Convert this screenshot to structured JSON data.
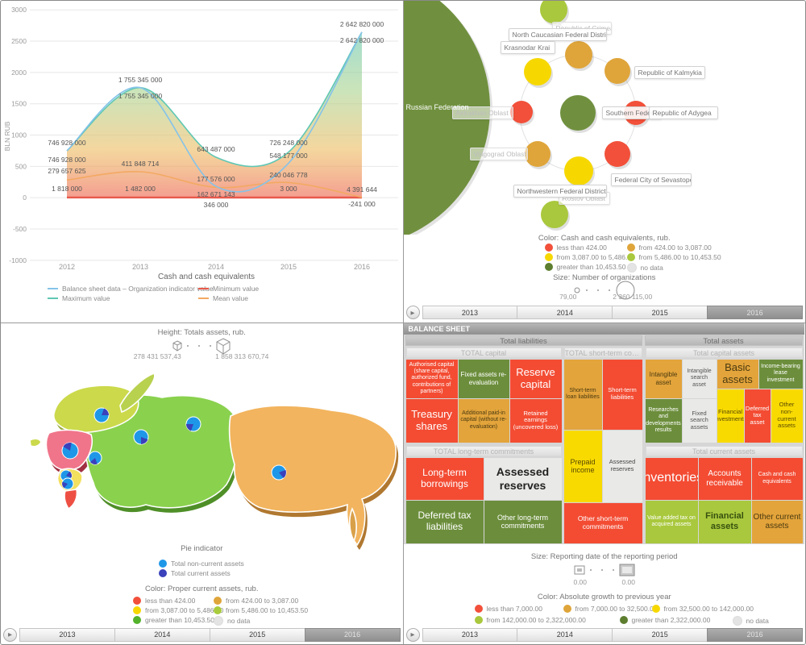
{
  "timeline": {
    "years": [
      "2013",
      "2014",
      "2015",
      "2016"
    ],
    "selected": "2016",
    "play_icon": "▶"
  },
  "chart_data": [
    {
      "type": "line",
      "title": "Cash and cash equivalents",
      "ylabel": "BLN RUB",
      "ylim": [
        -1000,
        3000
      ],
      "yticks": [
        "3000",
        "2500",
        "2000",
        "1500",
        "1000",
        "500",
        "0",
        "-500",
        "-1000"
      ],
      "x": [
        "2012",
        "2013",
        "2014",
        "2015",
        "2016"
      ],
      "grid": true,
      "legend_position": "bottom",
      "series": [
        {
          "name": "Balance sheet data – Organization indicator value",
          "color": "#85c3e9",
          "values": [
            746928000,
            1755345000,
            177576000,
            548177000,
            2642820000
          ],
          "labels": [
            "746 928 000",
            "1 755 345 000",
            "177 576 000",
            "548 177 000",
            "2 642 820 000"
          ]
        },
        {
          "name": "Maximum value",
          "color": "#5fc7b4",
          "values": [
            746928000,
            1755345000,
            643487000,
            726248000,
            2642820000
          ],
          "labels": [
            "746 928 000",
            "1 755 345 000",
            "643 487 000",
            "726 248 000",
            "2 642 820 000"
          ]
        },
        {
          "name": "Minimum value",
          "color": "#e8594b",
          "values": [
            1818000,
            1482000,
            346000,
            3000,
            -241000
          ],
          "labels": [
            "1 818 000",
            "1 482 000",
            "346 000",
            "3 000",
            "-241 000"
          ]
        },
        {
          "name": "Mean value",
          "color": "#f3a963",
          "values": [
            279657625,
            411848714,
            162671143,
            240046778,
            4391644
          ],
          "labels": [
            "279 657 625",
            "411 848 714",
            "162 671 143",
            "240 046 778",
            "4 391 644"
          ]
        }
      ]
    },
    {
      "type": "scatter",
      "color_title": "Color: Cash and cash equivalents, rub.",
      "size_title": "Size: Number of organizations",
      "size_min_label": "79,00",
      "size_max_label": "2 360 115,00",
      "color_legend": [
        {
          "label": "less than 424.00",
          "color": "#f2503a"
        },
        {
          "label": "from 424.00 to 3,087.00",
          "color": "#dfa53a"
        },
        {
          "label": "from 3,087.00 to 5,486.00",
          "color": "#f6d800"
        },
        {
          "label": "from 5,486.00 to 10,453.50",
          "color": "#a9c83d"
        },
        {
          "label": "greater than 10,453.50",
          "color": "#5d7e2f"
        },
        {
          "label": "no data",
          "color": "#e4e4e4"
        }
      ],
      "nodes": [
        {
          "label": "Russian Federation",
          "color": "#70903f"
        },
        {
          "label": "Southern Federal District",
          "color": "#70903f"
        },
        {
          "label": "North Caucasian Federal District",
          "color": "#dfa53a"
        },
        {
          "label": "Krasnodar Krai",
          "color": "#f6d800"
        },
        {
          "label": "Republic of Kalmykia",
          "color": "#dfa53a"
        },
        {
          "label": "Astrakhan Oblast",
          "color": "#f2503a"
        },
        {
          "label": "Republic of Adygea",
          "color": "#f2503a"
        },
        {
          "label": "Volgograd Oblast",
          "color": "#dfa53a"
        },
        {
          "label": "Rostov Oblast",
          "color": "#f6d800"
        },
        {
          "label": "Federal City of Sevastopol",
          "color": "#f2503a"
        },
        {
          "label": "Republic of Crimea",
          "color": "#a9c83d"
        },
        {
          "label": "Northwestern Federal District",
          "color": "#a9c83d"
        }
      ]
    },
    {
      "type": "map",
      "height_title": "Height: Totals assets, rub.",
      "height_min_label": "278 431 537,43",
      "height_max_label": "1 858 313 670,74",
      "pie_title": "Pie indicator",
      "pie_legend": [
        {
          "label": "Total non-current assets",
          "color": "#1f97e8"
        },
        {
          "label": "Total current assets",
          "color": "#3a41bb"
        }
      ],
      "color_title": "Color: Proper current assets, rub.",
      "color_legend": [
        {
          "label": "less than 424.00",
          "color": "#f2503a"
        },
        {
          "label": "from 424.00 to 3,087.00",
          "color": "#dfa53a"
        },
        {
          "label": "from 3,087.00 to 5,486.00",
          "color": "#f6d800"
        },
        {
          "label": "from 5,486.00 to 10,453.50",
          "color": "#a9cc3d"
        },
        {
          "label": "greater than 10,453.50",
          "color": "#53b22b"
        },
        {
          "label": "no data",
          "color": "#e4e4e4"
        }
      ]
    },
    {
      "type": "treemap",
      "header": "BALANCE SHEET",
      "group_labels": [
        "Total liabilities",
        "Total assets"
      ],
      "section_labels": [
        "TOTAL capital",
        "TOTAL short-term commitments",
        "TOTAL long-term commitments",
        "Total capital assets",
        "Total current assets"
      ],
      "cells": [
        {
          "label": "Authorised capital (share capital, authorized fund, contributions of partners)",
          "color": "#f34c33",
          "text": "#ffffff"
        },
        {
          "label": "Fixed assets re-evaluation",
          "color": "#6c8e3c",
          "text": "#ffffff"
        },
        {
          "label": "Reserve capital",
          "color": "#f34c33",
          "text": "#ffffff"
        },
        {
          "label": "Treasury shares",
          "color": "#f34c33",
          "text": "#ffffff"
        },
        {
          "label": "Additional paid-in capital (without re-evaluation)",
          "color": "#e3a43b",
          "text": "#4a3a10"
        },
        {
          "label": "Retained earnings (uncovered loss)",
          "color": "#f34c33",
          "text": "#ffffff"
        },
        {
          "label": "Short-term loan liabilities",
          "color": "#e3a43b",
          "text": "#4a3a10"
        },
        {
          "label": "Short-term liabilities",
          "color": "#f34c33",
          "text": "#ffffff"
        },
        {
          "label": "Prepaid income",
          "color": "#f8da00",
          "text": "#5a4a00"
        },
        {
          "label": "Assessed reserves",
          "color": "#e9e9e7",
          "text": "#444444"
        },
        {
          "label": "Other short-term commitments",
          "color": "#f34c33",
          "text": "#ffffff"
        },
        {
          "label": "Long-term borrowings",
          "color": "#f34c33",
          "text": "#ffffff"
        },
        {
          "label": "Assessed reserves",
          "color": "#e9e9e7",
          "text": "#222222"
        },
        {
          "label": "Deferred tax liabilities",
          "color": "#6c8e3c",
          "text": "#ffffff"
        },
        {
          "label": "Other long-term commitments",
          "color": "#6c8e3c",
          "text": "#ffffff"
        },
        {
          "label": "Intangible asset",
          "color": "#e3a43b",
          "text": "#4a3a10"
        },
        {
          "label": "Intangible search asset",
          "color": "#e9e9e7",
          "text": "#555555"
        },
        {
          "label": "Basic assets",
          "color": "#e3a43b",
          "text": "#4a3a10"
        },
        {
          "label": "Income-bearing lease investment",
          "color": "#6c8e3c",
          "text": "#ffffff"
        },
        {
          "label": "Researches and developments results",
          "color": "#6c8e3c",
          "text": "#ffffff"
        },
        {
          "label": "Fixed search assets",
          "color": "#e9e9e7",
          "text": "#555555"
        },
        {
          "label": "Financial investments",
          "color": "#f8da00",
          "text": "#5a4a00"
        },
        {
          "label": "Deferred tax asset",
          "color": "#f34c33",
          "text": "#ffffff"
        },
        {
          "label": "Other non-current assets",
          "color": "#f8da00",
          "text": "#5a4a00"
        },
        {
          "label": "Inventories",
          "color": "#f34c33",
          "text": "#ffffff"
        },
        {
          "label": "Accounts receivable",
          "color": "#f34c33",
          "text": "#ffffff"
        },
        {
          "label": "Cash and cash equivalents",
          "color": "#f34c33",
          "text": "#ffffff"
        },
        {
          "label": "Value added tax on acquired assets",
          "color": "#a9c83d",
          "text": "#ffffff"
        },
        {
          "label": "Financial assets",
          "color": "#a9c83d",
          "text": "#37510f"
        },
        {
          "label": "Other current assets",
          "color": "#e3a43b",
          "text": "#4a3a10"
        }
      ],
      "size_title": "Size: Reporting date of the reporting period",
      "size_min_label": "0.00",
      "size_max_label": "0.00",
      "color_title": "Color: Absolute growth to previous year",
      "color_legend": [
        {
          "label": "less than 7,000.00",
          "color": "#f2503a"
        },
        {
          "label": "from 7,000.00 to 32,500.00",
          "color": "#dfa53a"
        },
        {
          "label": "from 32,500.00 to 142,000.00",
          "color": "#f6d800"
        },
        {
          "label": "from 142,000.00 to 2,322,000.00",
          "color": "#a9c83d"
        },
        {
          "label": "greater than 2,322,000.00",
          "color": "#5d7e2f"
        },
        {
          "label": "no data",
          "color": "#e4e4e4"
        }
      ]
    }
  ]
}
